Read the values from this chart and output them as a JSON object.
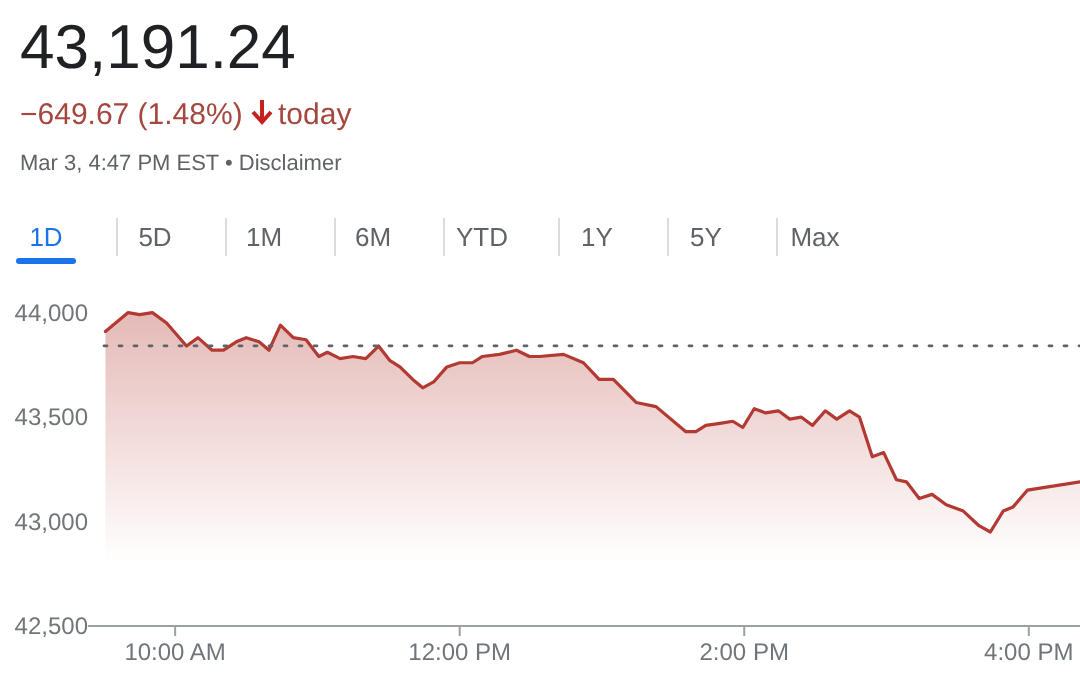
{
  "chart_data": {
    "type": "area",
    "title": "43,191.24",
    "subtitle": "−649.67 (1.48%)",
    "annotations": [
      "today",
      "Mar 3, 4:47 PM EST • Disclaimer",
      "1D",
      "5D",
      "1M",
      "6M",
      "YTD",
      "1Y",
      "5Y",
      "Max"
    ],
    "x": [
      9.51,
      9.67,
      9.75,
      9.84,
      9.94,
      10.08,
      10.16,
      10.26,
      10.34,
      10.43,
      10.5,
      10.59,
      10.66,
      10.74,
      10.83,
      10.92,
      11.01,
      11.07,
      11.16,
      11.25,
      11.34,
      11.43,
      11.51,
      11.58,
      11.67,
      11.74,
      11.82,
      11.91,
      12.0,
      12.09,
      12.16,
      12.28,
      12.4,
      12.49,
      12.56,
      12.73,
      12.87,
      12.98,
      13.08,
      13.24,
      13.38,
      13.59,
      13.66,
      13.73,
      13.83,
      13.92,
      13.99,
      14.07,
      14.15,
      14.24,
      14.32,
      14.4,
      14.48,
      14.57,
      14.65,
      14.74,
      14.81,
      14.9,
      14.98,
      15.07,
      15.14,
      15.23,
      15.32,
      15.42,
      15.54,
      15.65,
      15.73,
      15.82,
      15.89,
      15.99,
      16.36
    ],
    "series": [
      {
        "color": "#b23a32",
        "values": [
          43910,
          44000,
          43990,
          44000,
          43950,
          43840,
          43880,
          43820,
          43820,
          43860,
          43880,
          43860,
          43820,
          43940,
          43880,
          43870,
          43790,
          43810,
          43780,
          43790,
          43780,
          43840,
          43770,
          43740,
          43680,
          43640,
          43670,
          43740,
          43760,
          43760,
          43790,
          43800,
          43820,
          43790,
          43790,
          43800,
          43760,
          43680,
          43680,
          43570,
          43550,
          43430,
          43430,
          43460,
          43470,
          43480,
          43450,
          43540,
          43520,
          43530,
          43490,
          43500,
          43460,
          43530,
          43490,
          43530,
          43500,
          43310,
          43330,
          43200,
          43190,
          43110,
          43130,
          43080,
          43050,
          42980,
          42950,
          43050,
          43070,
          43150,
          43190
        ]
      }
    ],
    "xlim": [
      9.5,
      16.36
    ],
    "xticks": [
      {
        "value": 10,
        "label": "10:00 AM"
      },
      {
        "value": 12,
        "label": "12:00 PM"
      },
      {
        "value": 14,
        "label": "2:00 PM"
      },
      {
        "value": 16,
        "label": "4:00 PM"
      }
    ],
    "ylim": [
      42500,
      44000
    ],
    "yticks": [
      {
        "value": 42500,
        "label": "42,500"
      },
      {
        "value": 43000,
        "label": "43,000"
      },
      {
        "value": 43500,
        "label": "43,500"
      },
      {
        "value": 44000,
        "label": "44,000"
      }
    ],
    "ref_lines": [
      {
        "axis": "y",
        "value": 43841,
        "color": "#5f6368",
        "line_style": "dotted"
      }
    ],
    "grid": false
  }
}
